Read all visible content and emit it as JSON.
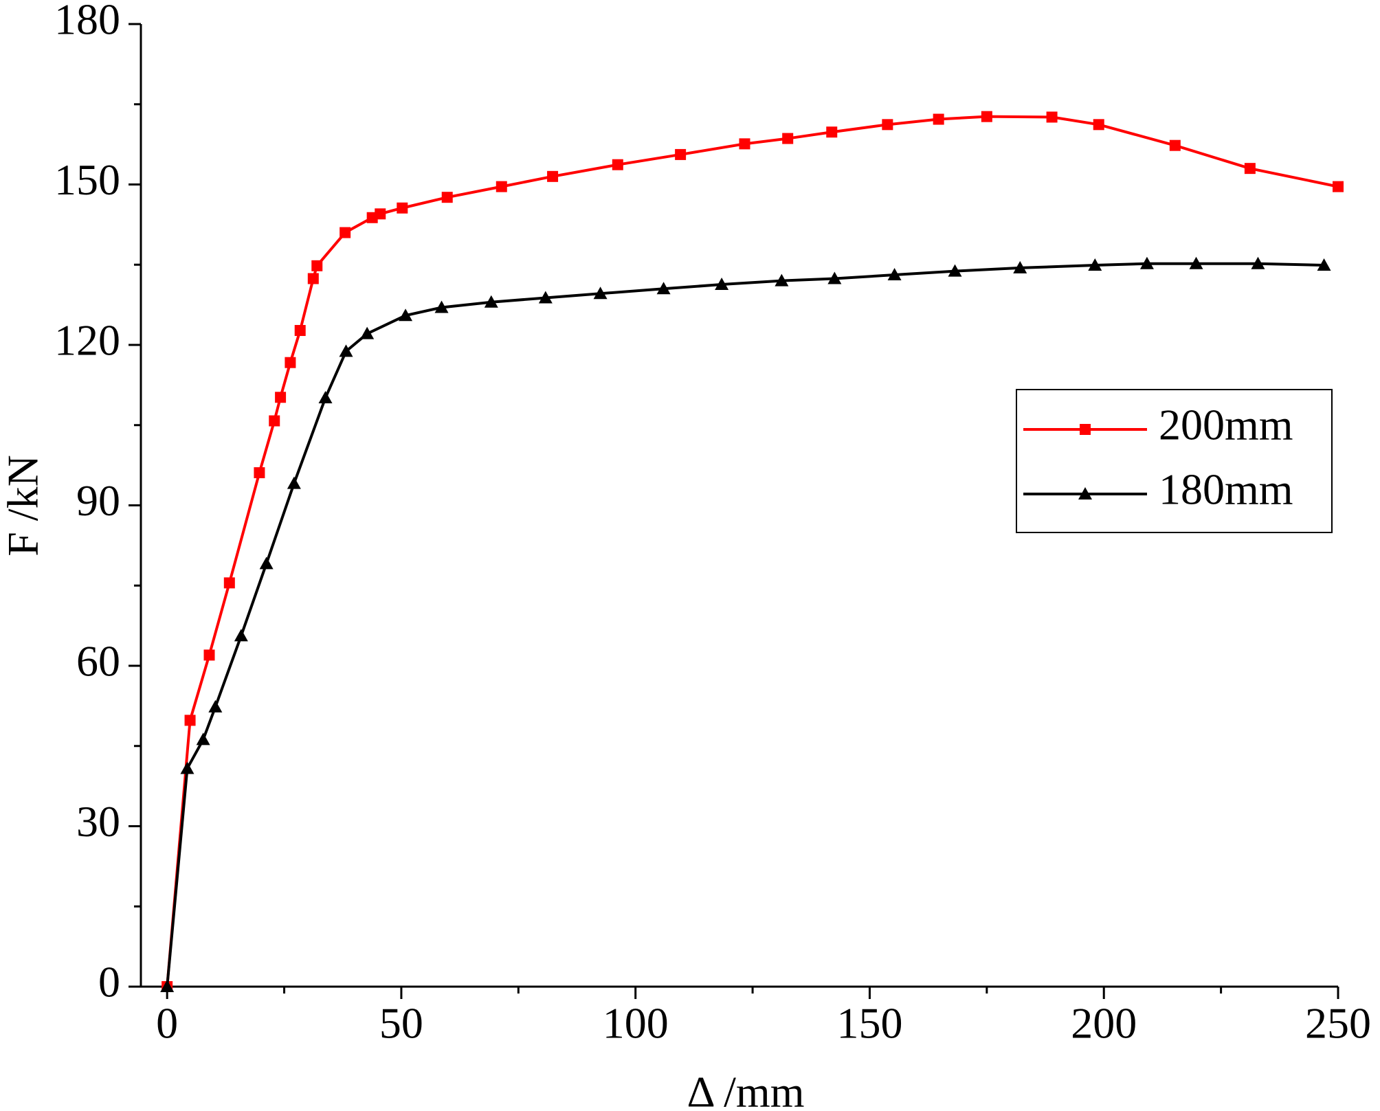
{
  "chart_data": {
    "type": "line",
    "x_label": "Δ /mm",
    "y_label": "F /kN",
    "xlim": [
      -5.6,
      250
    ],
    "ylim": [
      0,
      180
    ],
    "xticks": [
      0,
      50,
      100,
      150,
      200,
      250
    ],
    "yticks": [
      0,
      30,
      60,
      90,
      120,
      150,
      180
    ],
    "legend": "right",
    "series": [
      {
        "name": "200mm",
        "color": "#ff0000",
        "marker": "square",
        "x": [
          0,
          4.9,
          9.0,
          13.3,
          19.7,
          22.9,
          24.2,
          26.3,
          28.4,
          31.2,
          32.0,
          38.0,
          43.8,
          45.5,
          50.2,
          59.8,
          71.4,
          82.3,
          96.2,
          109.6,
          123.3,
          132.5,
          141.9,
          153.8,
          164.7,
          175.0,
          188.9,
          198.9,
          215.2,
          231.2,
          250
        ],
        "values": [
          0,
          49.8,
          62.0,
          75.5,
          96.1,
          105.8,
          110.2,
          116.7,
          122.7,
          132.4,
          134.8,
          141.0,
          143.8,
          144.5,
          145.6,
          147.6,
          149.6,
          151.5,
          153.7,
          155.6,
          157.6,
          158.6,
          159.8,
          161.2,
          162.2,
          162.7,
          162.6,
          161.2,
          157.3,
          153.0,
          149.6
        ]
      },
      {
        "name": "180mm",
        "color": "#000000",
        "marker": "triangle",
        "x": [
          0,
          4.3,
          7.7,
          10.3,
          15.8,
          21.2,
          27.1,
          33.8,
          38.2,
          42.7,
          50.9,
          58.6,
          69.2,
          80.8,
          92.5,
          106.0,
          118.4,
          131.2,
          142.5,
          155.3,
          168.2,
          182.1,
          198.1,
          209.2,
          219.7,
          232.9,
          247.0
        ],
        "values": [
          0,
          40.8,
          46.2,
          52.3,
          65.6,
          79.1,
          94.1,
          110.1,
          118.8,
          122.1,
          125.5,
          127.0,
          128.0,
          128.8,
          129.6,
          130.5,
          131.3,
          132.0,
          132.4,
          133.1,
          133.8,
          134.4,
          134.9,
          135.2,
          135.2,
          135.2,
          134.9
        ]
      }
    ]
  }
}
